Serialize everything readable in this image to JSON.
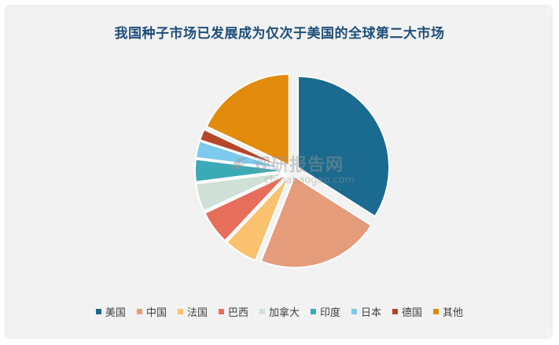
{
  "title": "我国种子市场已发展成为仅次于美国的全球第二大市场",
  "watermark": {
    "text": "观研报告网",
    "url": "chinabaogao.com"
  },
  "chart_data": {
    "type": "pie",
    "title": "我国种子市场已发展成为仅次于美国的全球第二大市场",
    "categories": [
      "美国",
      "中国",
      "法国",
      "巴西",
      "加拿大",
      "印度",
      "日本",
      "德国",
      "其他"
    ],
    "values": [
      34,
      22,
      6,
      6,
      5,
      4,
      3,
      2,
      18
    ],
    "colors": [
      "#1b6a8f",
      "#e59c7b",
      "#fac26e",
      "#e86e5c",
      "#cfe0d6",
      "#3aaab5",
      "#7ec9ee",
      "#b5462a",
      "#e38b0d"
    ],
    "exploded": [
      true,
      true,
      true,
      true,
      true,
      true,
      true,
      true,
      true
    ],
    "legend_position": "bottom"
  }
}
